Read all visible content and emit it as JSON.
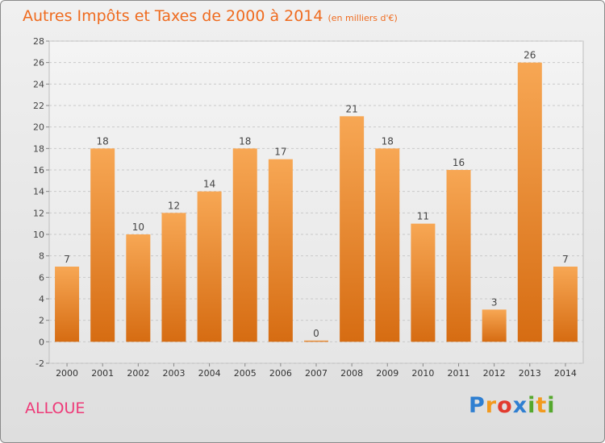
{
  "title": "Autres Impôts et Taxes de 2000 à 2014",
  "subtitle": "(en milliers d'€)",
  "commune": "ALLOUE",
  "logo": {
    "text": "Proxiti",
    "letters": [
      {
        "ch": "P",
        "color": "#2f7fd1"
      },
      {
        "ch": "r",
        "color": "#f29a1e"
      },
      {
        "ch": "o",
        "color": "#e23b2e"
      },
      {
        "ch": "x",
        "color": "#2f7fd1"
      },
      {
        "ch": "i",
        "color": "#55a82d"
      },
      {
        "ch": "t",
        "color": "#f29a1e"
      },
      {
        "ch": "i",
        "color": "#55a82d"
      }
    ]
  },
  "colors": {
    "title": "#ef6b1f",
    "commune": "#ee3a78",
    "bar_top": "#f7a754",
    "bar_bottom": "#d66c12"
  },
  "chart_data": {
    "type": "bar",
    "categories": [
      "2000",
      "2001",
      "2002",
      "2003",
      "2004",
      "2005",
      "2006",
      "2007",
      "2008",
      "2009",
      "2010",
      "2011",
      "2012",
      "2013",
      "2014"
    ],
    "values": [
      7,
      18,
      10,
      12,
      14,
      18,
      17,
      0,
      21,
      18,
      11,
      16,
      3,
      26,
      7
    ],
    "data_labels": [
      "7",
      "18",
      "10",
      "12",
      "14",
      "18",
      "17",
      "0",
      "21",
      "18",
      "11",
      "16",
      "3",
      "26",
      "7"
    ],
    "yticks": [
      -2,
      0,
      2,
      4,
      6,
      8,
      10,
      12,
      14,
      16,
      18,
      20,
      22,
      24,
      26,
      28
    ],
    "ylim": [
      -2,
      28
    ],
    "grid": true,
    "legend": "none"
  }
}
